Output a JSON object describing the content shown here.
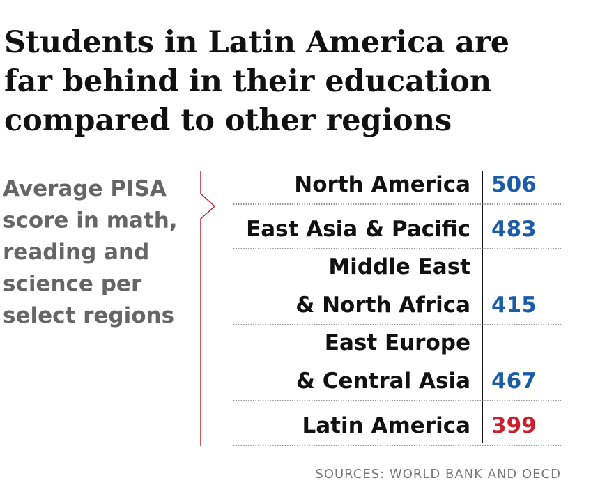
{
  "header": {
    "title": [
      "Students in Latin America are",
      "far behind in their education",
      "compared to other regions"
    ],
    "subtitle": [
      "Average PISA",
      "score in math,",
      "reading and",
      "science per",
      "select regions"
    ]
  },
  "table": {
    "rows": [
      {
        "label": [
          "North America"
        ],
        "value": 506,
        "color": "#1a5ca6"
      },
      {
        "label": [
          "East Asia & Pacific"
        ],
        "value": 483,
        "color": "#1a5ca6"
      },
      {
        "label": [
          "Middle East",
          "& North Africa"
        ],
        "value": 415,
        "color": "#1a5ca6"
      },
      {
        "label": [
          "East Europe",
          "& Central Asia"
        ],
        "value": 467,
        "color": "#1a5ca6"
      },
      {
        "label": [
          "Latin America"
        ],
        "value": 399,
        "color": "#cc1f2d",
        "label_color": "#cc1f2d"
      }
    ]
  },
  "source": "SOURCES: WORLD BANK AND OECD"
}
